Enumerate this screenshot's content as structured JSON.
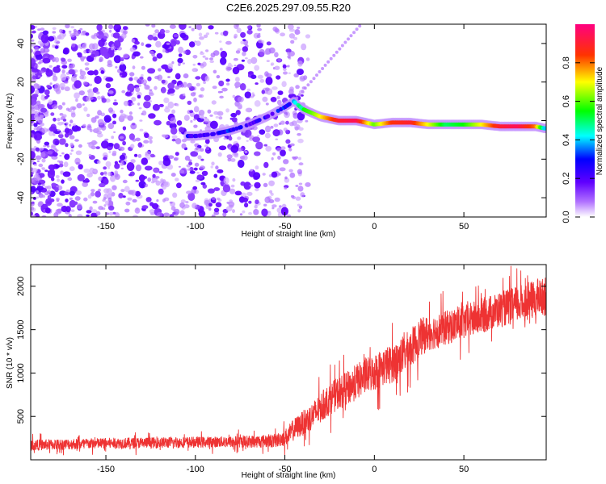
{
  "title": "C2E6.2025.297.09.55.R20",
  "chart_data": [
    {
      "type": "heatmap",
      "xlabel": "Height of straight line (km)",
      "ylabel": "Frequency (Hz)",
      "xlim": [
        -192,
        96
      ],
      "ylim": [
        -50,
        50
      ],
      "xticks": [
        -150,
        -100,
        -50,
        0,
        50
      ],
      "yticks": [
        -40,
        -20,
        0,
        20,
        40
      ],
      "ridge": {
        "description": "Doppler frequency of strongest echo vs height",
        "x": [
          -100,
          -90,
          -80,
          -70,
          -60,
          -50,
          -45,
          -40,
          -35,
          -30,
          -20,
          -10,
          0,
          10,
          20,
          30,
          40,
          50,
          60,
          70,
          80,
          90,
          95
        ],
        "freq": [
          -8,
          -7,
          -5,
          -2,
          2,
          7,
          10,
          6,
          4,
          2,
          0,
          0,
          -2,
          -1,
          -1,
          -2,
          -2,
          -2,
          -2,
          -3,
          -3,
          -3,
          -4
        ],
        "amplitude": [
          0.25,
          0.22,
          0.3,
          0.2,
          0.25,
          0.3,
          0.35,
          0.55,
          0.6,
          0.7,
          0.9,
          0.95,
          0.6,
          0.85,
          0.9,
          0.7,
          0.5,
          0.55,
          0.7,
          0.9,
          0.95,
          0.8,
          0.4
        ]
      },
      "colorbar": {
        "label": "Normalized spectral amplitude",
        "ticks": [
          0.0,
          0.2,
          0.4,
          0.6,
          0.8
        ],
        "tick_labels": [
          "0.0",
          "0.2",
          "0.4",
          "0.6",
          "0.8"
        ],
        "colors": [
          "#ffffff",
          "#8000ff",
          "#0000ff",
          "#00ffff",
          "#00ff00",
          "#ffff00",
          "#ff0000",
          "#ff0080"
        ]
      }
    },
    {
      "type": "line",
      "xlabel": "Height of straight line (km)",
      "ylabel": "SNR (10 * v/v)",
      "xlim": [
        -192,
        96
      ],
      "ylim": [
        0,
        2250
      ],
      "xticks": [
        -150,
        -100,
        -50,
        0,
        50
      ],
      "yticks": [
        500,
        1000,
        1500,
        2000
      ],
      "color": "#ee3333",
      "series": [
        {
          "name": "SNR",
          "x": [
            -190,
            -170,
            -150,
            -130,
            -110,
            -90,
            -70,
            -55,
            -48,
            -45,
            -40,
            -35,
            -30,
            -25,
            -20,
            -15,
            -10,
            -5,
            0,
            5,
            10,
            15,
            20,
            25,
            30,
            40,
            50,
            60,
            70,
            80,
            90,
            95
          ],
          "values": [
            170,
            180,
            190,
            195,
            200,
            205,
            210,
            220,
            280,
            350,
            420,
            500,
            600,
            700,
            770,
            820,
            900,
            960,
            1010,
            1070,
            1110,
            1190,
            1280,
            1400,
            1460,
            1520,
            1580,
            1660,
            1730,
            1790,
            1850,
            1880
          ],
          "noise_amplitude": [
            80,
            80,
            80,
            80,
            80,
            80,
            90,
            100,
            130,
            160,
            180,
            200,
            220,
            230,
            240,
            250,
            260,
            260,
            270,
            280,
            280,
            280,
            280,
            280,
            260,
            250,
            250,
            260,
            260,
            270,
            280,
            280
          ]
        }
      ]
    }
  ]
}
